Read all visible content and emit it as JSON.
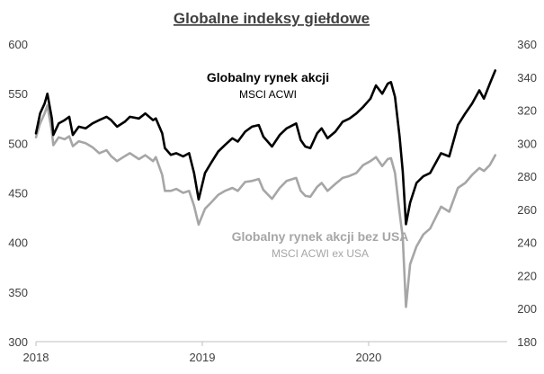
{
  "chart_data": {
    "type": "line",
    "title": "Globalne indeksy giełdowe",
    "x_tick_labels": [
      "2018",
      "2019",
      "2020"
    ],
    "x_range": [
      "2018-01-01",
      "2020-10-31"
    ],
    "left_axis": {
      "ylim": [
        300,
        600
      ],
      "tick_labels": [
        "300",
        "350",
        "400",
        "450",
        "500",
        "550",
        "600"
      ]
    },
    "right_axis": {
      "ylim": [
        180,
        360
      ],
      "tick_labels": [
        "180",
        "200",
        "220",
        "240",
        "260",
        "280",
        "300",
        "320",
        "340",
        "360"
      ]
    },
    "grid": false,
    "legend": "none",
    "series": [
      {
        "name": "Globalny rynek akcji",
        "subtitle": "MSCI ACWI",
        "axis": "right",
        "color": "#000000",
        "x": [
          "2018-01-01",
          "2018-01-10",
          "2018-01-20",
          "2018-01-26",
          "2018-02-05",
          "2018-02-08",
          "2018-02-20",
          "2018-03-05",
          "2018-03-15",
          "2018-03-23",
          "2018-04-05",
          "2018-04-20",
          "2018-05-05",
          "2018-05-20",
          "2018-06-05",
          "2018-06-15",
          "2018-06-28",
          "2018-07-15",
          "2018-07-26",
          "2018-08-15",
          "2018-08-29",
          "2018-09-15",
          "2018-09-21",
          "2018-10-05",
          "2018-10-11",
          "2018-10-24",
          "2018-11-05",
          "2018-11-20",
          "2018-12-03",
          "2018-12-14",
          "2018-12-24",
          "2019-01-07",
          "2019-01-20",
          "2019-02-05",
          "2019-02-20",
          "2019-03-08",
          "2019-03-20",
          "2019-04-05",
          "2019-04-20",
          "2019-05-05",
          "2019-05-15",
          "2019-06-03",
          "2019-06-20",
          "2019-07-05",
          "2019-07-26",
          "2019-08-05",
          "2019-08-15",
          "2019-08-26",
          "2019-09-10",
          "2019-09-20",
          "2019-10-03",
          "2019-10-20",
          "2019-11-05",
          "2019-11-20",
          "2019-12-05",
          "2019-12-20",
          "2020-01-05",
          "2020-01-17",
          "2020-01-31",
          "2020-02-12",
          "2020-02-19",
          "2020-02-28",
          "2020-03-09",
          "2020-03-16",
          "2020-03-23",
          "2020-04-01",
          "2020-04-15",
          "2020-04-30",
          "2020-05-15",
          "2020-06-08",
          "2020-06-26",
          "2020-07-15",
          "2020-07-31",
          "2020-08-15",
          "2020-08-31",
          "2020-09-10",
          "2020-09-23",
          "2020-10-05"
        ],
        "values": [
          306,
          318,
          324,
          330,
          315,
          305,
          312,
          314,
          316,
          305,
          310,
          309,
          312,
          314,
          316,
          314,
          310,
          313,
          316,
          315,
          318,
          314,
          315,
          306,
          297,
          293,
          294,
          292,
          294,
          282,
          266,
          282,
          288,
          295,
          299,
          303,
          301,
          307,
          310,
          311,
          304,
          298,
          305,
          309,
          312,
          302,
          298,
          297,
          306,
          309,
          303,
          307,
          313,
          315,
          318,
          322,
          327,
          335,
          330,
          336,
          337,
          328,
          304,
          283,
          251,
          264,
          276,
          280,
          282,
          294,
          292,
          311,
          318,
          324,
          332,
          327,
          336,
          344
        ]
      },
      {
        "name": "Globalny rynek akcji bez USA",
        "subtitle": "MSCI ACWI ex USA",
        "axis": "left",
        "color": "#a6a6a6",
        "x": [
          "2018-01-01",
          "2018-01-10",
          "2018-01-20",
          "2018-01-26",
          "2018-02-05",
          "2018-02-08",
          "2018-02-20",
          "2018-03-05",
          "2018-03-15",
          "2018-03-23",
          "2018-04-05",
          "2018-04-20",
          "2018-05-05",
          "2018-05-20",
          "2018-06-05",
          "2018-06-15",
          "2018-06-28",
          "2018-07-15",
          "2018-07-26",
          "2018-08-15",
          "2018-08-29",
          "2018-09-15",
          "2018-09-21",
          "2018-10-05",
          "2018-10-11",
          "2018-10-24",
          "2018-11-05",
          "2018-11-20",
          "2018-12-03",
          "2018-12-14",
          "2018-12-24",
          "2019-01-07",
          "2019-01-20",
          "2019-02-05",
          "2019-02-20",
          "2019-03-08",
          "2019-03-20",
          "2019-04-05",
          "2019-04-20",
          "2019-05-05",
          "2019-05-15",
          "2019-06-03",
          "2019-06-20",
          "2019-07-05",
          "2019-07-26",
          "2019-08-05",
          "2019-08-15",
          "2019-08-26",
          "2019-09-10",
          "2019-09-20",
          "2019-10-03",
          "2019-10-20",
          "2019-11-05",
          "2019-11-20",
          "2019-12-05",
          "2019-12-20",
          "2020-01-05",
          "2020-01-17",
          "2020-01-31",
          "2020-02-12",
          "2020-02-19",
          "2020-02-28",
          "2020-03-09",
          "2020-03-16",
          "2020-03-23",
          "2020-04-01",
          "2020-04-15",
          "2020-04-30",
          "2020-05-15",
          "2020-06-08",
          "2020-06-26",
          "2020-07-15",
          "2020-07-31",
          "2020-08-15",
          "2020-08-31",
          "2020-09-10",
          "2020-09-23",
          "2020-10-05"
        ],
        "values": [
          506,
          520,
          530,
          538,
          512,
          498,
          506,
          504,
          507,
          497,
          502,
          500,
          496,
          490,
          493,
          487,
          482,
          487,
          490,
          484,
          488,
          482,
          486,
          468,
          452,
          452,
          454,
          450,
          452,
          437,
          418,
          434,
          440,
          448,
          452,
          455,
          452,
          461,
          462,
          464,
          453,
          444,
          455,
          462,
          465,
          452,
          447,
          446,
          456,
          460,
          452,
          459,
          465,
          467,
          470,
          478,
          482,
          486,
          477,
          484,
          485,
          470,
          430,
          405,
          335,
          378,
          396,
          408,
          414,
          436,
          431,
          455,
          460,
          468,
          475,
          472,
          478,
          488
        ]
      }
    ],
    "annotations": [
      {
        "series": "Globalny rynek akcji",
        "title": "Globalny rynek akcji",
        "subtitle": "MSCI ACWI"
      },
      {
        "series": "Globalny rynek akcji bez USA",
        "title": "Globalny rynek akcji bez USA",
        "subtitle": "MSCI ACWI ex USA"
      }
    ]
  }
}
